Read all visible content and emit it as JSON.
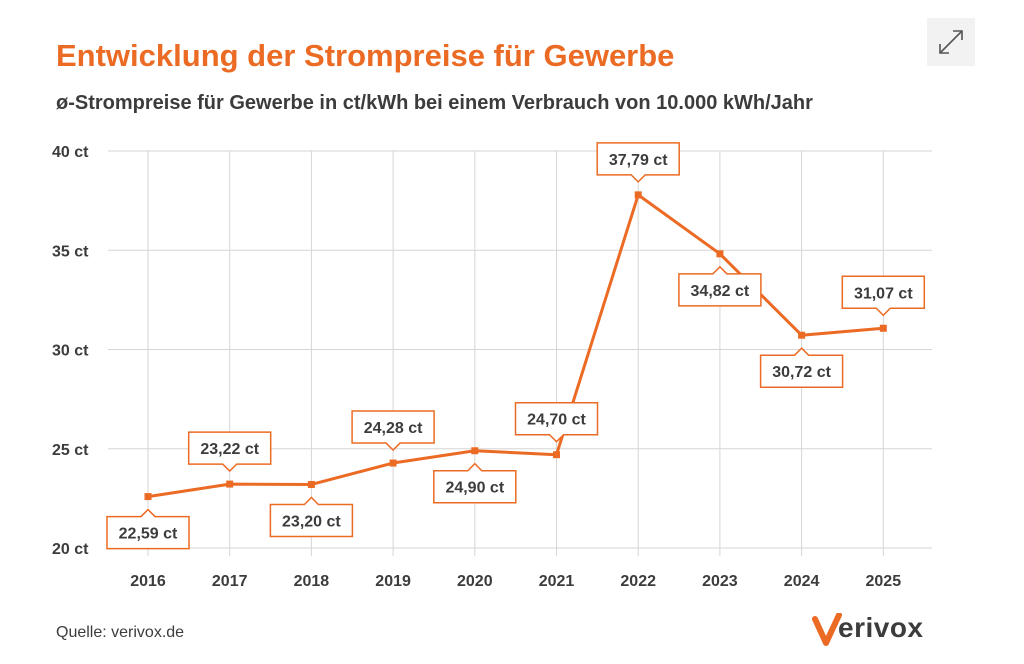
{
  "header": {
    "title": "Entwicklung der Strompreise für Gewerbe",
    "subtitle": "ø-Strompreise für Gewerbe in ct/kWh bei einem Verbrauch von 10.000 kWh/Jahr"
  },
  "footer": {
    "source": "Quelle: verivox.de",
    "logo_text": "erivox"
  },
  "icons": {
    "expand": "expand-arrows-icon",
    "logo": "verivox-logo-icon"
  },
  "colors": {
    "accent": "#ec6b24",
    "text": "#3c3c3c",
    "grid": "#d6d6d6"
  },
  "chart_data": {
    "type": "line",
    "title": "Entwicklung der Strompreise für Gewerbe",
    "subtitle": "ø-Strompreise für Gewerbe in ct/kWh bei einem Verbrauch von 10.000 kWh/Jahr",
    "xlabel": "",
    "ylabel": "",
    "categories": [
      "2016",
      "2017",
      "2018",
      "2019",
      "2020",
      "2021",
      "2022",
      "2023",
      "2024",
      "2025"
    ],
    "values": [
      22.59,
      23.22,
      23.2,
      24.28,
      24.9,
      24.7,
      37.79,
      34.82,
      30.72,
      31.07
    ],
    "data_labels": [
      "22,59 ct",
      "23,22 ct",
      "23,20 ct",
      "24,28 ct",
      "24,90 ct",
      "24,70 ct",
      "37,79 ct",
      "34,82 ct",
      "30,72 ct",
      "31,07 ct"
    ],
    "label_positions": [
      "below",
      "above",
      "below",
      "above",
      "below",
      "above",
      "above",
      "below",
      "below",
      "above"
    ],
    "yticks": [
      20,
      25,
      30,
      35,
      40
    ],
    "ytick_labels": [
      "20 ct",
      "25 ct",
      "30 ct",
      "35 ct",
      "40 ct"
    ],
    "ylim": [
      20,
      40
    ],
    "grid": true,
    "legend": "none"
  }
}
